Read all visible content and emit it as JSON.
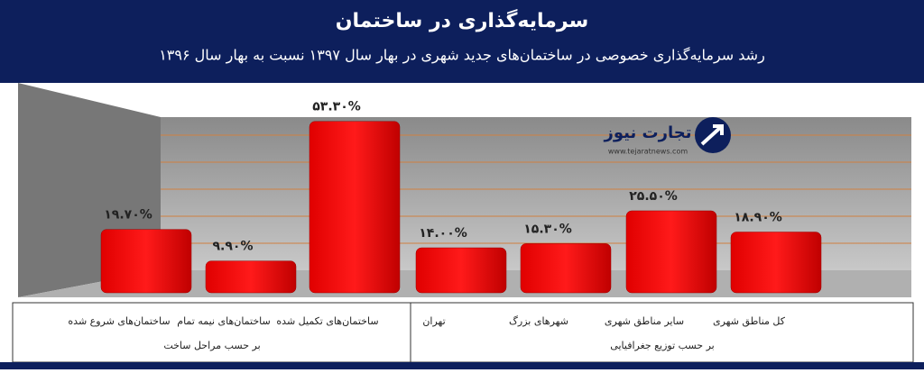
{
  "chart_data": {
    "type": "bar",
    "title": "سرمایه‌گذاری در ساختمان",
    "subtitle": "رشد سرمایه‌گذاری خصوصی در ساختمان‌های جدید شهری در بهار سال ۱۳۹۷ نسبت به بهار سال ۱۳۹۶",
    "categories": [
      "ساختمان‌های شروع شده",
      "ساختمان‌های نیمه تمام",
      "ساختمان‌های تکمیل شده",
      "تهران",
      "شهرهای بزرگ",
      "سایر مناطق شهری",
      "کل مناطق شهری"
    ],
    "groups": [
      "بر حسب مراحل ساخت",
      "بر حسب توزیع جغرافیایی"
    ],
    "values": [
      19.7,
      9.9,
      53.3,
      14.0,
      15.3,
      25.5,
      18.9
    ],
    "value_labels": [
      "۱۹.۷۰%",
      "۹.۹۰%",
      "۵۳.۳۰%",
      "۱۴.۰۰%",
      "۱۵.۳۰%",
      "۲۵.۵۰%",
      "۱۸.۹۰%"
    ],
    "color": "#ff0000",
    "logo": {
      "name": "تجارت نیوز",
      "url": "www.tejaratnews.com"
    }
  }
}
